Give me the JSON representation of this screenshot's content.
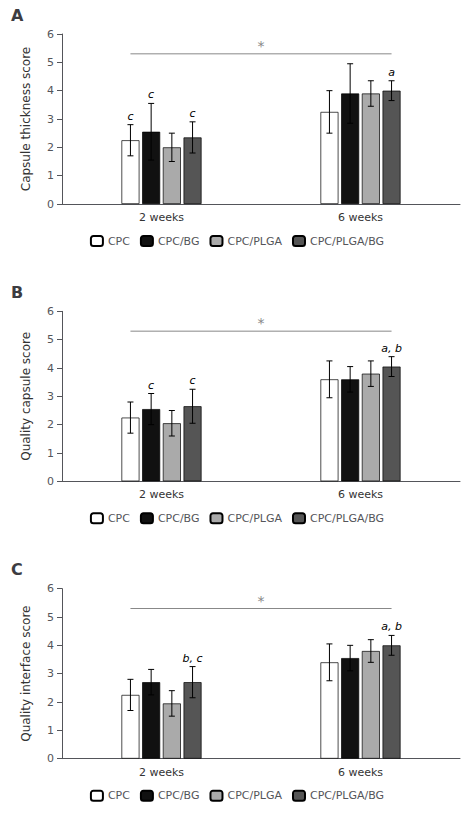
{
  "chart_data": [
    {
      "type": "bar",
      "title": "A",
      "ylabel": "Capsule thickness score",
      "categories": [
        "2 weeks",
        "6 weeks"
      ],
      "series": [
        {
          "name": "CPC",
          "color": "#ffffff",
          "values": [
            2.25,
            3.25
          ],
          "errors": [
            0.55,
            0.75
          ]
        },
        {
          "name": "CPC/BG",
          "color": "#111111",
          "values": [
            2.55,
            3.9
          ],
          "errors": [
            1.0,
            1.05
          ]
        },
        {
          "name": "CPC/PLGA",
          "color": "#aaaaaa",
          "values": [
            2.0,
            3.9
          ],
          "errors": [
            0.5,
            0.45
          ]
        },
        {
          "name": "CPC/PLGA/BG",
          "color": "#555555",
          "values": [
            2.35,
            4.0
          ],
          "errors": [
            0.55,
            0.35
          ]
        }
      ],
      "annotations": [
        {
          "text": "c",
          "series": "CPC",
          "category": "2 weeks"
        },
        {
          "text": "c",
          "series": "CPC/BG",
          "category": "2 weeks"
        },
        {
          "text": "c",
          "series": "CPC/PLGA/BG",
          "category": "2 weeks"
        },
        {
          "text": "a",
          "series": "CPC/PLGA/BG",
          "category": "6 weeks"
        }
      ],
      "significance": {
        "text": "*",
        "y": 5.3,
        "color": "#888888",
        "from": {
          "series": "CPC",
          "category": "2 weeks"
        },
        "to": {
          "series": "CPC/PLGA/BG",
          "category": "6 weeks"
        }
      },
      "ylim": [
        0,
        6
      ],
      "yticks": [
        0,
        1,
        2,
        3,
        4,
        5,
        6
      ],
      "grid": false,
      "legend": "bottom"
    },
    {
      "type": "bar",
      "title": "B",
      "ylabel": "Quality capsule score",
      "categories": [
        "2 weeks",
        "6 weeks"
      ],
      "series": [
        {
          "name": "CPC",
          "color": "#ffffff",
          "values": [
            2.25,
            3.6
          ],
          "errors": [
            0.55,
            0.65
          ]
        },
        {
          "name": "CPC/BG",
          "color": "#111111",
          "values": [
            2.55,
            3.6
          ],
          "errors": [
            0.55,
            0.45
          ]
        },
        {
          "name": "CPC/PLGA",
          "color": "#aaaaaa",
          "values": [
            2.05,
            3.8
          ],
          "errors": [
            0.45,
            0.45
          ]
        },
        {
          "name": "CPC/PLGA/BG",
          "color": "#555555",
          "values": [
            2.65,
            4.05
          ],
          "errors": [
            0.6,
            0.35
          ]
        }
      ],
      "annotations": [
        {
          "text": "c",
          "series": "CPC/BG",
          "category": "2 weeks"
        },
        {
          "text": "c",
          "series": "CPC/PLGA/BG",
          "category": "2 weeks"
        },
        {
          "text": "a, b",
          "series": "CPC/PLGA/BG",
          "category": "6 weeks"
        }
      ],
      "significance": {
        "text": "*",
        "y": 5.3,
        "color": "#888888",
        "from": {
          "series": "CPC",
          "category": "2 weeks"
        },
        "to": {
          "series": "CPC/PLGA/BG",
          "category": "6 weeks"
        }
      },
      "ylim": [
        0,
        6
      ],
      "yticks": [
        0,
        1,
        2,
        3,
        4,
        5,
        6
      ],
      "grid": false,
      "legend": "bottom"
    },
    {
      "type": "bar",
      "title": "C",
      "ylabel": "Quality interface score",
      "categories": [
        "2 weeks",
        "6 weeks"
      ],
      "series": [
        {
          "name": "CPC",
          "color": "#ffffff",
          "values": [
            2.25,
            3.4
          ],
          "errors": [
            0.55,
            0.65
          ]
        },
        {
          "name": "CPC/BG",
          "color": "#111111",
          "values": [
            2.7,
            3.55
          ],
          "errors": [
            0.45,
            0.45
          ]
        },
        {
          "name": "CPC/PLGA",
          "color": "#aaaaaa",
          "values": [
            1.95,
            3.8
          ],
          "errors": [
            0.45,
            0.4
          ]
        },
        {
          "name": "CPC/PLGA/BG",
          "color": "#555555",
          "values": [
            2.7,
            4.0
          ],
          "errors": [
            0.55,
            0.35
          ]
        }
      ],
      "annotations": [
        {
          "text": "b, c",
          "series": "CPC/PLGA/BG",
          "category": "2 weeks"
        },
        {
          "text": "a, b",
          "series": "CPC/PLGA/BG",
          "category": "6 weeks"
        }
      ],
      "significance": {
        "text": "*",
        "y": 5.3,
        "color": "#888888",
        "from": {
          "series": "CPC",
          "category": "2 weeks"
        },
        "to": {
          "series": "CPC/PLGA/BG",
          "category": "6 weeks"
        }
      },
      "ylim": [
        0,
        6
      ],
      "yticks": [
        0,
        1,
        2,
        3,
        4,
        5,
        6
      ],
      "grid": false,
      "legend": "bottom"
    }
  ]
}
